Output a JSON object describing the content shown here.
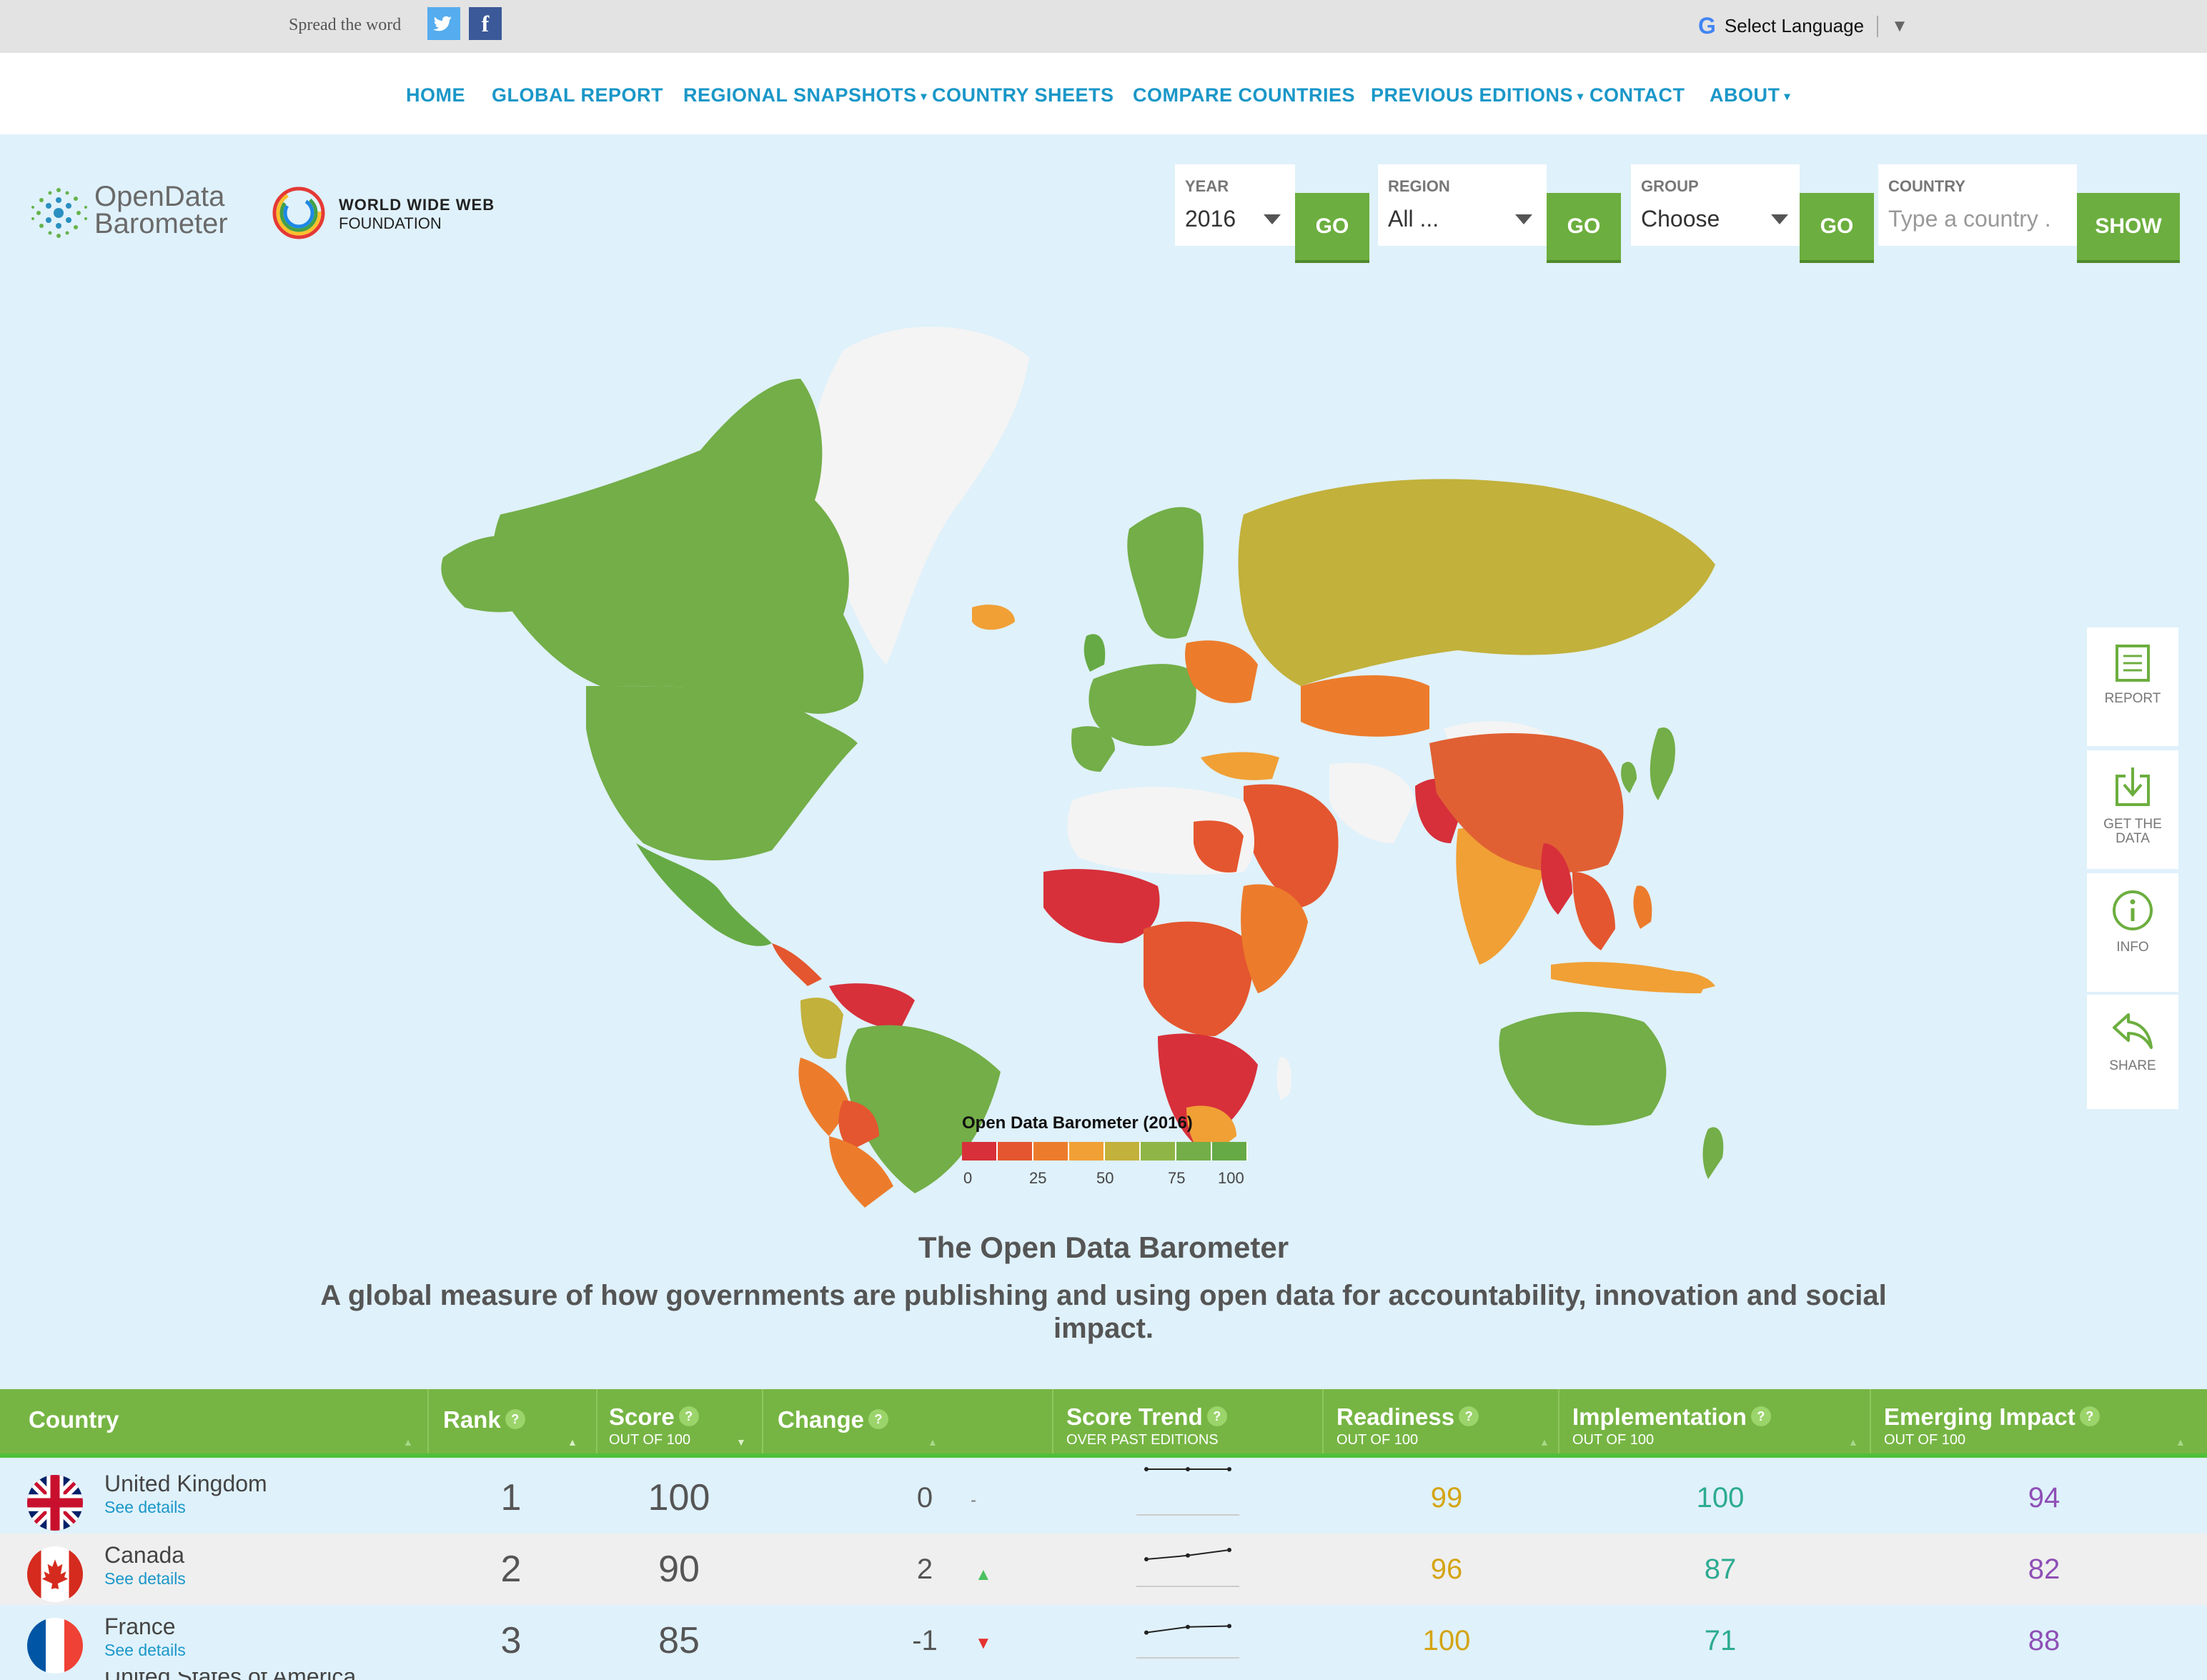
{
  "topbar": {
    "spread_label": "Spread the word",
    "twitter_glyph": "🐦",
    "facebook_glyph": "f",
    "language_label": "Select Language",
    "language_arrow": "▼",
    "google_glyph": "G"
  },
  "nav": {
    "items": [
      {
        "label": "HOME",
        "dropdown": false
      },
      {
        "label": "GLOBAL REPORT",
        "dropdown": false
      },
      {
        "label": "REGIONAL SNAPSHOTS",
        "dropdown": true
      },
      {
        "label": "COUNTRY SHEETS",
        "dropdown": false
      },
      {
        "label": "COMPARE COUNTRIES",
        "dropdown": false
      },
      {
        "label": "PREVIOUS EDITIONS",
        "dropdown": true
      },
      {
        "label": "CONTACT",
        "dropdown": false
      },
      {
        "label": "ABOUT",
        "dropdown": true
      }
    ]
  },
  "logos": {
    "odb_line1": "OpenData",
    "odb_line2": "Barometer",
    "www_line1": "WORLD WIDE WEB",
    "www_line2": "FOUNDATION"
  },
  "filters": {
    "year": {
      "label": "YEAR",
      "value": "2016",
      "button": "GO"
    },
    "region": {
      "label": "REGION",
      "value": "All ...",
      "button": "GO"
    },
    "group": {
      "label": "GROUP",
      "value": "Choose",
      "button": "GO"
    },
    "country": {
      "label": "COUNTRY",
      "placeholder": "Type a country .",
      "button": "SHOW"
    }
  },
  "legend": {
    "title": "Open Data Barometer (2016)",
    "ticks": [
      "0",
      "25",
      "50",
      "75",
      "100"
    ],
    "colors": [
      "#d7303a",
      "#e4562f",
      "#ec7c2c",
      "#f0a035",
      "#c2b13b",
      "#8fb547",
      "#73ae48",
      "#66aa45"
    ]
  },
  "rail": {
    "report": "REPORT",
    "data_line1": "GET THE",
    "data_line2": "DATA",
    "info": "INFO",
    "share": "SHARE"
  },
  "heading": {
    "title": "The Open Data Barometer",
    "subtitle": "A global measure of how governments are publishing and using open data for accountability, innovation and social impact."
  },
  "table": {
    "headers": {
      "country": "Country",
      "rank": "Rank",
      "score": "Score",
      "score_sub": "OUT OF 100",
      "change": "Change",
      "trend": "Score Trend",
      "trend_sub": "OVER PAST EDITIONS",
      "readiness": "Readiness",
      "readiness_sub": "OUT OF 100",
      "implementation": "Implementation",
      "implementation_sub": "OUT OF 100",
      "impact": "Emerging Impact",
      "impact_sub": "OUT OF 100",
      "help": "?"
    },
    "rows": [
      {
        "country": "United Kingdom",
        "details": "See details",
        "rank": "1",
        "score": "100",
        "change": "0",
        "change_icon": "-",
        "readiness": "99",
        "implementation": "100",
        "impact": "94",
        "trend_values": [
          100,
          100,
          100
        ]
      },
      {
        "country": "Canada",
        "details": "See details",
        "rank": "2",
        "score": "90",
        "change": "2",
        "change_icon": "▲",
        "readiness": "96",
        "implementation": "87",
        "impact": "82",
        "trend_values": [
          80,
          84,
          90
        ]
      },
      {
        "country": "France",
        "details": "See details",
        "rank": "3",
        "score": "85",
        "change": "-1",
        "change_icon": "▼",
        "readiness": "100",
        "implementation": "71",
        "impact": "88",
        "trend_values": [
          78,
          84,
          85
        ]
      },
      {
        "country": "United States of America"
      }
    ]
  }
}
